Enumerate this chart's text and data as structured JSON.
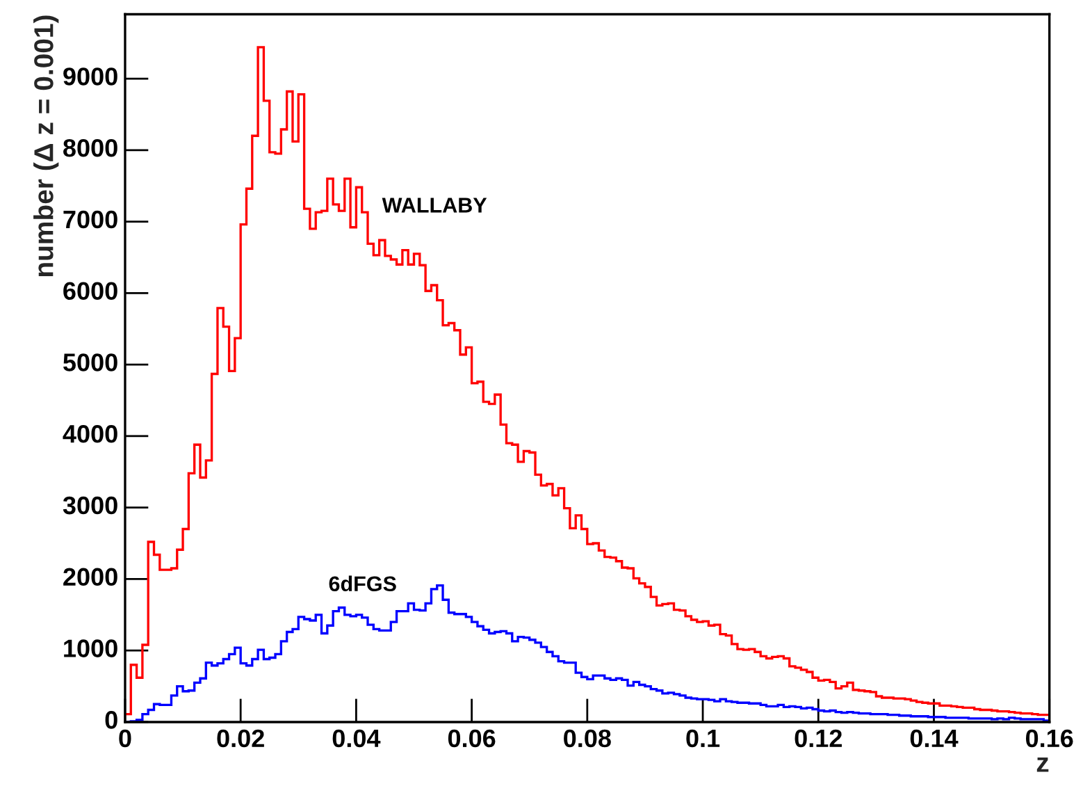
{
  "chart_data": {
    "type": "histogram",
    "xlabel": "z",
    "ylabel": "number (Δ z = 0.001)",
    "xlim": [
      0,
      0.16
    ],
    "ylim": [
      0,
      9900
    ],
    "xticks": [
      {
        "value": 0,
        "label": "0"
      },
      0.02,
      0.04,
      0.06,
      0.08,
      {
        "value": 0.1,
        "label": "0.1"
      },
      0.12,
      0.14,
      0.16
    ],
    "yticks": [
      0,
      1000,
      2000,
      3000,
      4000,
      5000,
      6000,
      7000,
      8000,
      9000
    ],
    "bins": [
      0,
      0.001,
      0.002,
      0.003,
      0.004,
      0.005,
      0.006,
      0.007,
      0.008,
      0.009,
      0.01,
      0.011,
      0.012,
      0.013,
      0.014,
      0.015,
      0.016,
      0.017,
      0.018,
      0.019,
      0.02,
      0.021,
      0.022,
      0.023,
      0.024,
      0.025,
      0.026,
      0.027,
      0.028,
      0.029,
      0.03,
      0.031,
      0.032,
      0.033,
      0.034,
      0.035,
      0.036,
      0.037,
      0.038,
      0.039,
      0.04,
      0.041,
      0.042,
      0.043,
      0.044,
      0.045,
      0.046,
      0.047,
      0.048,
      0.049,
      0.05,
      0.051,
      0.052,
      0.053,
      0.054,
      0.055,
      0.056,
      0.057,
      0.058,
      0.059,
      0.06,
      0.061,
      0.062,
      0.063,
      0.064,
      0.065,
      0.066,
      0.067,
      0.068,
      0.069,
      0.07,
      0.071,
      0.072,
      0.073,
      0.074,
      0.075,
      0.076,
      0.077,
      0.078,
      0.079,
      0.08,
      0.081,
      0.082,
      0.083,
      0.084,
      0.085,
      0.086,
      0.087,
      0.088,
      0.089,
      0.09,
      0.091,
      0.092,
      0.093,
      0.094,
      0.095,
      0.096,
      0.097,
      0.098,
      0.099,
      0.1,
      0.101,
      0.102,
      0.103,
      0.104,
      0.105,
      0.106,
      0.107,
      0.108,
      0.109,
      0.11,
      0.111,
      0.112,
      0.113,
      0.114,
      0.115,
      0.116,
      0.117,
      0.118,
      0.119,
      0.12,
      0.121,
      0.122,
      0.123,
      0.124,
      0.125,
      0.126,
      0.127,
      0.128,
      0.129,
      0.13,
      0.131,
      0.132,
      0.133,
      0.134,
      0.135,
      0.136,
      0.137,
      0.138,
      0.139,
      0.14,
      0.141,
      0.142,
      0.143,
      0.144,
      0.145,
      0.146,
      0.147,
      0.148,
      0.149,
      0.15,
      0.151,
      0.152,
      0.153,
      0.154,
      0.155,
      0.156,
      0.157,
      0.158,
      0.159,
      0.16
    ],
    "series": [
      {
        "name": "WALLABY",
        "color": "#ff0000",
        "values": [
          110,
          800,
          620,
          1080,
          2520,
          2340,
          2130,
          2130,
          2150,
          2410,
          2700,
          3480,
          3880,
          3420,
          3660,
          4870,
          5790,
          5530,
          4910,
          5370,
          6960,
          7460,
          8200,
          9440,
          8690,
          7970,
          7950,
          8290,
          8820,
          8120,
          8780,
          7180,
          6900,
          7130,
          7150,
          7600,
          7240,
          7150,
          7600,
          6920,
          7480,
          7130,
          6690,
          6530,
          6740,
          6520,
          6470,
          6400,
          6600,
          6400,
          6550,
          6390,
          6030,
          6110,
          5900,
          5550,
          5580,
          5480,
          5140,
          5240,
          4740,
          4760,
          4480,
          4450,
          4580,
          4160,
          3900,
          3880,
          3640,
          3790,
          3770,
          3460,
          3310,
          3330,
          3170,
          3270,
          2990,
          2710,
          2890,
          2700,
          2490,
          2500,
          2400,
          2310,
          2300,
          2250,
          2160,
          2150,
          2010,
          1940,
          1890,
          1750,
          1630,
          1650,
          1660,
          1570,
          1560,
          1480,
          1430,
          1400,
          1410,
          1350,
          1360,
          1230,
          1210,
          1090,
          1020,
          1010,
          1020,
          980,
          920,
          890,
          910,
          920,
          890,
          780,
          760,
          730,
          700,
          620,
          580,
          590,
          560,
          470,
          500,
          550,
          450,
          440,
          430,
          420,
          360,
          340,
          340,
          330,
          330,
          320,
          300,
          280,
          270,
          260,
          260,
          230,
          230,
          220,
          210,
          200,
          200,
          180,
          170,
          170,
          160,
          150,
          150,
          140,
          130,
          120,
          120,
          110,
          100,
          100
        ]
      },
      {
        "name": "6dFGS",
        "color": "#0000ff",
        "values": [
          0,
          10,
          30,
          110,
          170,
          250,
          240,
          240,
          370,
          500,
          430,
          440,
          550,
          610,
          830,
          790,
          820,
          880,
          950,
          1040,
          820,
          790,
          880,
          1010,
          880,
          900,
          950,
          1130,
          1260,
          1300,
          1470,
          1440,
          1420,
          1500,
          1240,
          1350,
          1550,
          1600,
          1500,
          1480,
          1500,
          1460,
          1360,
          1300,
          1280,
          1280,
          1400,
          1550,
          1550,
          1660,
          1570,
          1560,
          1660,
          1860,
          1910,
          1710,
          1530,
          1510,
          1510,
          1470,
          1400,
          1340,
          1290,
          1240,
          1260,
          1270,
          1240,
          1130,
          1190,
          1180,
          1150,
          1110,
          1050,
          980,
          920,
          850,
          830,
          830,
          690,
          630,
          600,
          650,
          650,
          610,
          590,
          610,
          590,
          510,
          560,
          520,
          500,
          460,
          440,
          400,
          410,
          390,
          370,
          340,
          330,
          320,
          320,
          310,
          290,
          320,
          290,
          280,
          270,
          270,
          260,
          260,
          240,
          220,
          220,
          240,
          210,
          220,
          210,
          190,
          200,
          180,
          160,
          150,
          160,
          140,
          130,
          140,
          130,
          120,
          120,
          110,
          110,
          110,
          100,
          100,
          90,
          90,
          80,
          80,
          80,
          70,
          70,
          70,
          60,
          60,
          60,
          60,
          50,
          50,
          50,
          50,
          40,
          50,
          40,
          60,
          50,
          40,
          40,
          40,
          40,
          20
        ]
      }
    ]
  }
}
